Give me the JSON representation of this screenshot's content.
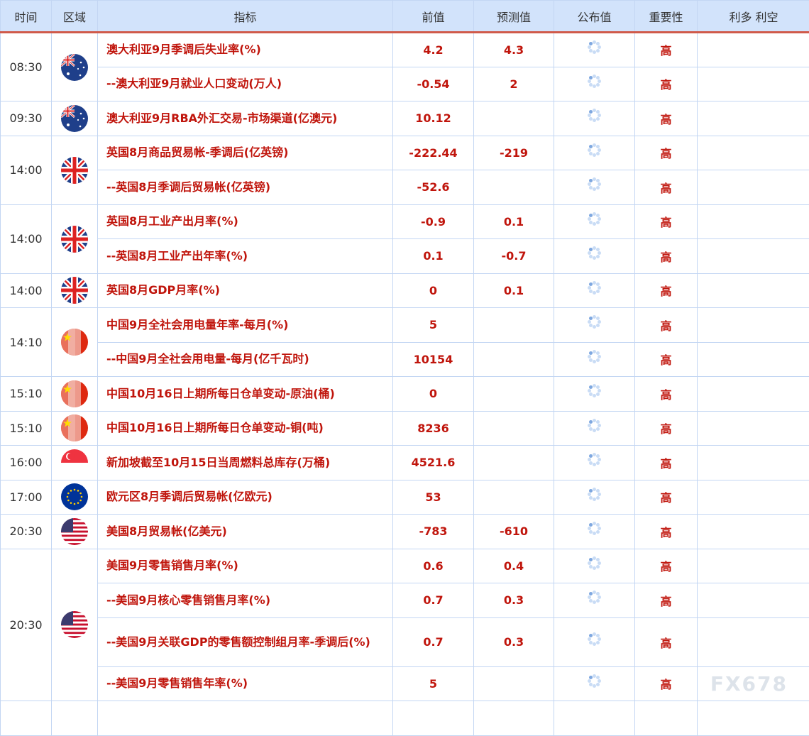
{
  "header": [
    "时间",
    "区域",
    "指标",
    "前值",
    "预测值",
    "公布值",
    "重要性",
    "利多 利空"
  ],
  "groups": [
    {
      "time": "08:30",
      "flag": "au",
      "rows": [
        {
          "name": "澳大利亚9月季调后失业率(%)",
          "prev": "4.2",
          "fore": "4.3",
          "imp": "高"
        },
        {
          "name": "--澳大利亚9月就业人口变动(万人)",
          "prev": "-0.54",
          "fore": "2",
          "imp": "高"
        }
      ]
    },
    {
      "time": "09:30",
      "flag": "au",
      "rows": [
        {
          "name": "澳大利亚9月RBA外汇交易-市场渠道(亿澳元)",
          "prev": "10.12",
          "fore": "",
          "imp": "高"
        }
      ]
    },
    {
      "time": "14:00",
      "flag": "gb",
      "rows": [
        {
          "name": "英国8月商品贸易帐-季调后(亿英镑)",
          "prev": "-222.44",
          "fore": "-219",
          "imp": "高"
        },
        {
          "name": "--英国8月季调后贸易帐(亿英镑)",
          "prev": "-52.6",
          "fore": "",
          "imp": "高"
        }
      ]
    },
    {
      "time": "14:00",
      "flag": "gb",
      "rows": [
        {
          "name": "英国8月工业产出月率(%)",
          "prev": "-0.9",
          "fore": "0.1",
          "imp": "高"
        },
        {
          "name": "--英国8月工业产出年率(%)",
          "prev": "0.1",
          "fore": "-0.7",
          "imp": "高"
        }
      ]
    },
    {
      "time": "14:00",
      "flag": "gb",
      "rows": [
        {
          "name": "英国8月GDP月率(%)",
          "prev": "0",
          "fore": "0.1",
          "imp": "高"
        }
      ]
    },
    {
      "time": "14:10",
      "flag": "cn",
      "rows": [
        {
          "name": "中国9月全社会用电量年率-每月(%)",
          "prev": "5",
          "fore": "",
          "imp": "高"
        },
        {
          "name": "--中国9月全社会用电量-每月(亿千瓦时)",
          "prev": "10154",
          "fore": "",
          "imp": "高"
        }
      ]
    },
    {
      "time": "15:10",
      "flag": "cn",
      "rows": [
        {
          "name": "中国10月16日上期所每日仓单变动-原油(桶)",
          "prev": "0",
          "fore": "",
          "imp": "高"
        }
      ]
    },
    {
      "time": "15:10",
      "flag": "cn",
      "rows": [
        {
          "name": "中国10月16日上期所每日仓单变动-铜(吨)",
          "prev": "8236",
          "fore": "",
          "imp": "高"
        }
      ]
    },
    {
      "time": "16:00",
      "flag": "sg",
      "rows": [
        {
          "name": "新加坡截至10月15日当周燃料总库存(万桶)",
          "prev": "4521.6",
          "fore": "",
          "imp": "高"
        }
      ]
    },
    {
      "time": "17:00",
      "flag": "eu",
      "rows": [
        {
          "name": "欧元区8月季调后贸易帐(亿欧元)",
          "prev": "53",
          "fore": "",
          "imp": "高"
        }
      ]
    },
    {
      "time": "20:30",
      "flag": "us",
      "rows": [
        {
          "name": "美国8月贸易帐(亿美元)",
          "prev": "-783",
          "fore": "-610",
          "imp": "高"
        }
      ]
    },
    {
      "time": "20:30",
      "flag": "us",
      "rows": [
        {
          "name": "美国9月零售销售月率(%)",
          "prev": "0.6",
          "fore": "0.4",
          "imp": "高"
        },
        {
          "name": "--美国9月核心零售销售月率(%)",
          "prev": "0.7",
          "fore": "0.3",
          "imp": "高"
        },
        {
          "name": "--美国9月关联GDP的零售额控制组月率-季调后(%)",
          "prev": "0.7",
          "fore": "0.3",
          "imp": "高"
        },
        {
          "name": "--美国9月零售销售年率(%)",
          "prev": "5",
          "fore": "",
          "imp": "高"
        }
      ]
    }
  ],
  "watermark": "FX678",
  "colors": {
    "accent": "#c0150c",
    "header_bg": "#d2e3fb",
    "header_rule": "#d05a4a"
  }
}
